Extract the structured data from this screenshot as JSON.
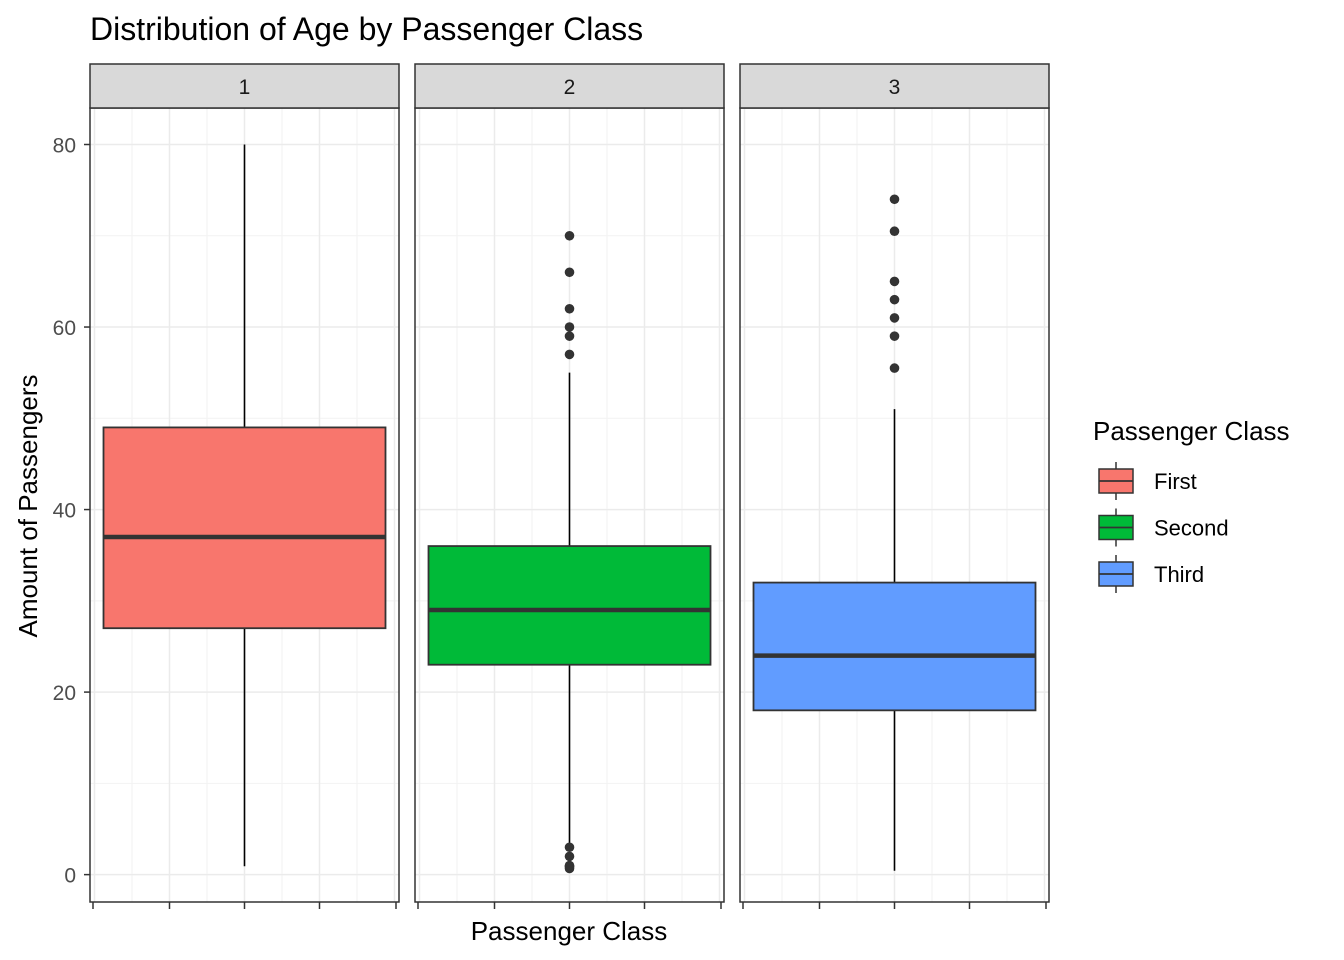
{
  "chart_data": {
    "type": "boxplot",
    "title": "Distribution of Age by Passenger Class",
    "xlabel": "Passenger Class",
    "ylabel": "Amount of Passengers",
    "ylim": [
      -3,
      84
    ],
    "yticks": [
      0,
      20,
      40,
      60,
      80
    ],
    "grid": true,
    "facets": [
      {
        "label": "1",
        "series": "First",
        "color": "#F8766D",
        "whisker_low": 0.92,
        "q1": 27,
        "median": 37,
        "q3": 49,
        "whisker_high": 80,
        "outliers": []
      },
      {
        "label": "2",
        "series": "Second",
        "color": "#00BA38",
        "whisker_low": 3,
        "q1": 23,
        "median": 29,
        "q3": 36,
        "whisker_high": 55,
        "outliers": [
          0.67,
          0.83,
          0.92,
          1,
          2,
          3,
          57,
          59,
          60,
          62,
          66,
          70
        ]
      },
      {
        "label": "3",
        "series": "Third",
        "color": "#619CFF",
        "whisker_low": 0.42,
        "q1": 18,
        "median": 24,
        "q3": 32,
        "whisker_high": 51,
        "outliers": [
          55.5,
          59,
          61,
          63,
          65,
          70.5,
          74
        ]
      }
    ],
    "legend": {
      "title": "Passenger Class",
      "position": "right",
      "entries": [
        {
          "label": "First",
          "color": "#F8766D"
        },
        {
          "label": "Second",
          "color": "#00BA38"
        },
        {
          "label": "Third",
          "color": "#619CFF"
        }
      ]
    }
  }
}
